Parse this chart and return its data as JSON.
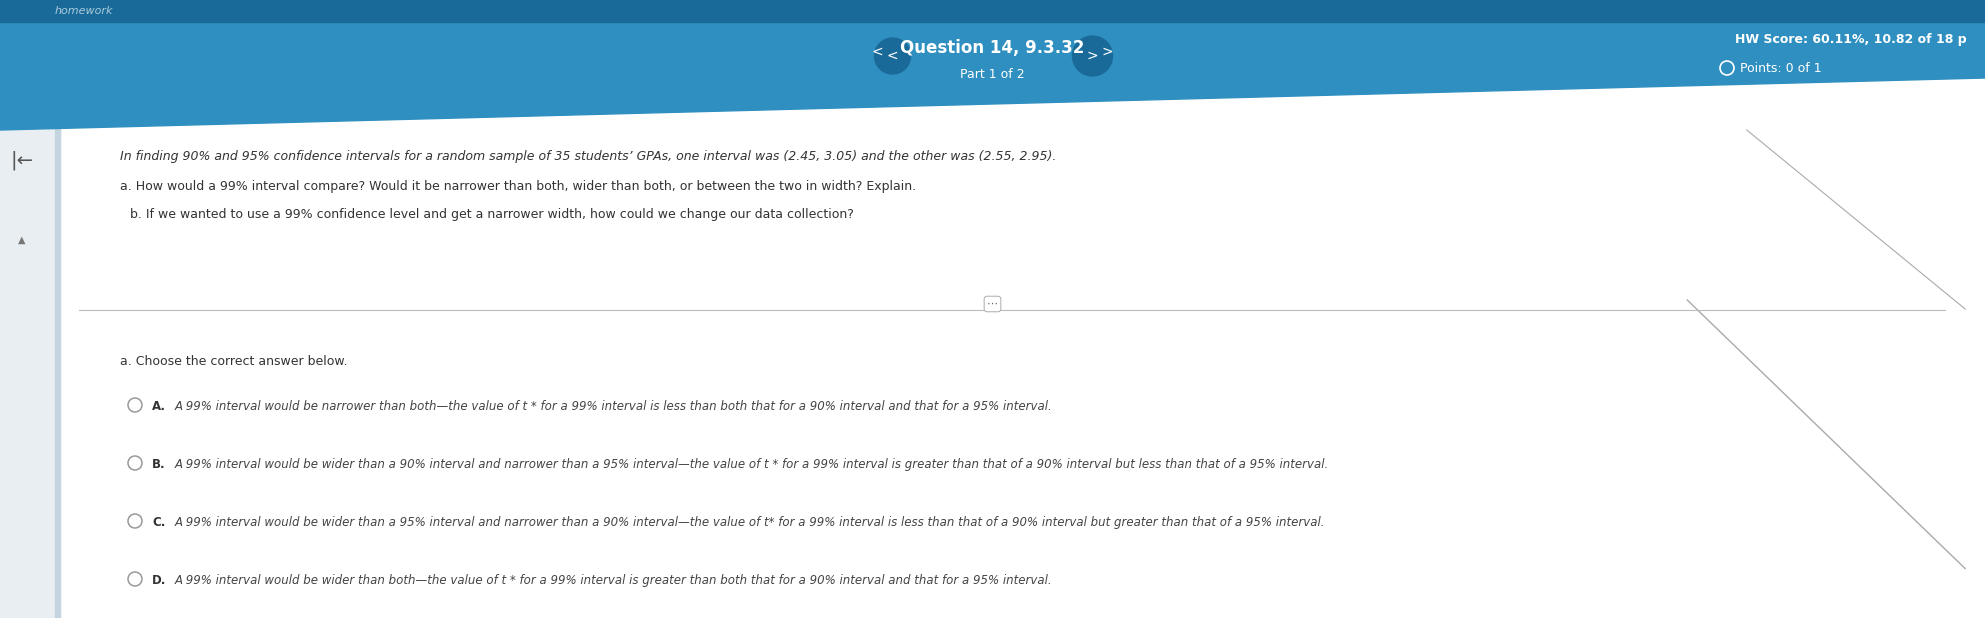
{
  "header_color": "#2e8fc0",
  "header_color2": "#3a9fd0",
  "body_bg": "#f5f5f5",
  "content_bg": "#ffffff",
  "left_sidebar_color": "#d0dce6",
  "question_title": "Question 14, 9.3.32",
  "question_subtitle": "Part 1 of 2",
  "hw_score_label": "HW Score: 60.11%, 10.82 of 18 p",
  "points_label": "Points: 0 of 1",
  "intro_text": "In finding 90% and 95% confidence intervals for a random sample of 35 students’ GPAs, one interval was (2.45, 3.05) and the other was (2.55, 2.95).",
  "part_a_question": "a. How would a 99% interval compare? Would it be narrower than both, wider than both, or between the two in width? Explain.",
  "part_b_question": "b. If we wanted to use a 99% confidence level and get a narrower width, how could we change our data collection?",
  "choose_text": "a. Choose the correct answer below.",
  "options": [
    {
      "letter": "A.",
      "text": "A 99% interval would be narrower than both—the value of t * for a 99% interval is less than both that for a 90% interval and that for a 95% interval."
    },
    {
      "letter": "B.",
      "text": "A 99% interval would be wider than a 90% interval and narrower than a 95% interval—the value of t * for a 99% interval is greater than that of a 90% interval but less than that of a 95% interval."
    },
    {
      "letter": "C.",
      "text": "A 99% interval would be wider than a 95% interval and narrower than a 90% interval—the value of t* for a 99% interval is less than that of a 90% interval but greater than that of a 95% interval."
    },
    {
      "letter": "D.",
      "text": "A 99% interval would be wider than both—the value of t * for a 99% interval is greater than both that for a 90% interval and that for a 95% interval."
    }
  ],
  "header_text_color": "#ffffff",
  "text_color": "#333333",
  "option_text_color": "#444444",
  "radio_color": "#999999",
  "separator_color": "#bbbbbb",
  "diag_line_color": "#aaaaaa",
  "font_size_title": 12,
  "font_size_subtitle": 9,
  "font_size_hw": 9,
  "font_size_intro": 9,
  "font_size_choose": 9,
  "font_size_option": 8.5,
  "nav_arrow_fontsize": 10
}
